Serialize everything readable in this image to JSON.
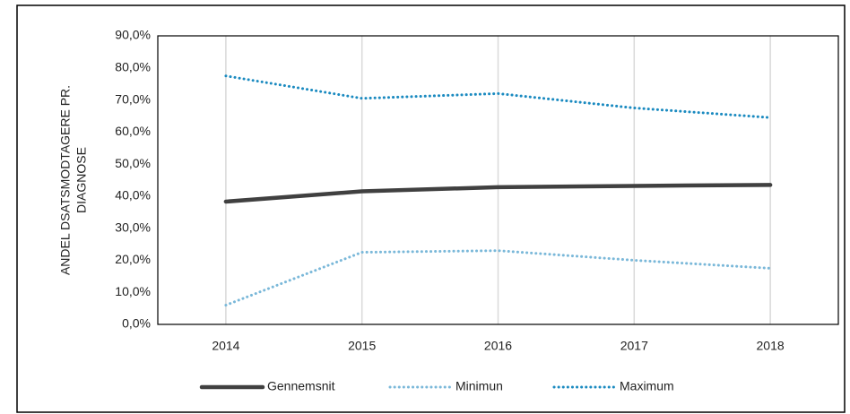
{
  "chart_data": {
    "type": "line",
    "y_label": [
      "ANDEL DSATSMODTAGERE PR.",
      "DIAGNOSE"
    ],
    "categories": [
      "2014",
      "2015",
      "2016",
      "2017",
      "2018"
    ],
    "series": [
      {
        "name": "Gennemsnit",
        "color": "#404040",
        "style": "solid",
        "values": [
          38.3,
          41.5,
          42.8,
          43.2,
          43.5
        ]
      },
      {
        "name": "Minimun",
        "color": "#7ab8d9",
        "style": "dotted",
        "values": [
          6.0,
          22.5,
          23.0,
          20.0,
          17.5
        ]
      },
      {
        "name": "Maximum",
        "color": "#1a8ac0",
        "style": "dotted",
        "values": [
          77.5,
          70.5,
          72.0,
          67.5,
          64.5
        ]
      }
    ],
    "ylim": [
      0,
      90
    ],
    "yticks": [
      {
        "value": 0,
        "label": "0,0%"
      },
      {
        "value": 10,
        "label": "10,0%"
      },
      {
        "value": 20,
        "label": "20,0%"
      },
      {
        "value": 30,
        "label": "30,0%"
      },
      {
        "value": 40,
        "label": "40,0%"
      },
      {
        "value": 50,
        "label": "50,0%"
      },
      {
        "value": 60,
        "label": "60,0%"
      },
      {
        "value": 70,
        "label": "70,0%"
      },
      {
        "value": 80,
        "label": "80,0%"
      },
      {
        "value": 90,
        "label": "90,0%"
      }
    ],
    "grid": true,
    "legend": "bottom"
  }
}
